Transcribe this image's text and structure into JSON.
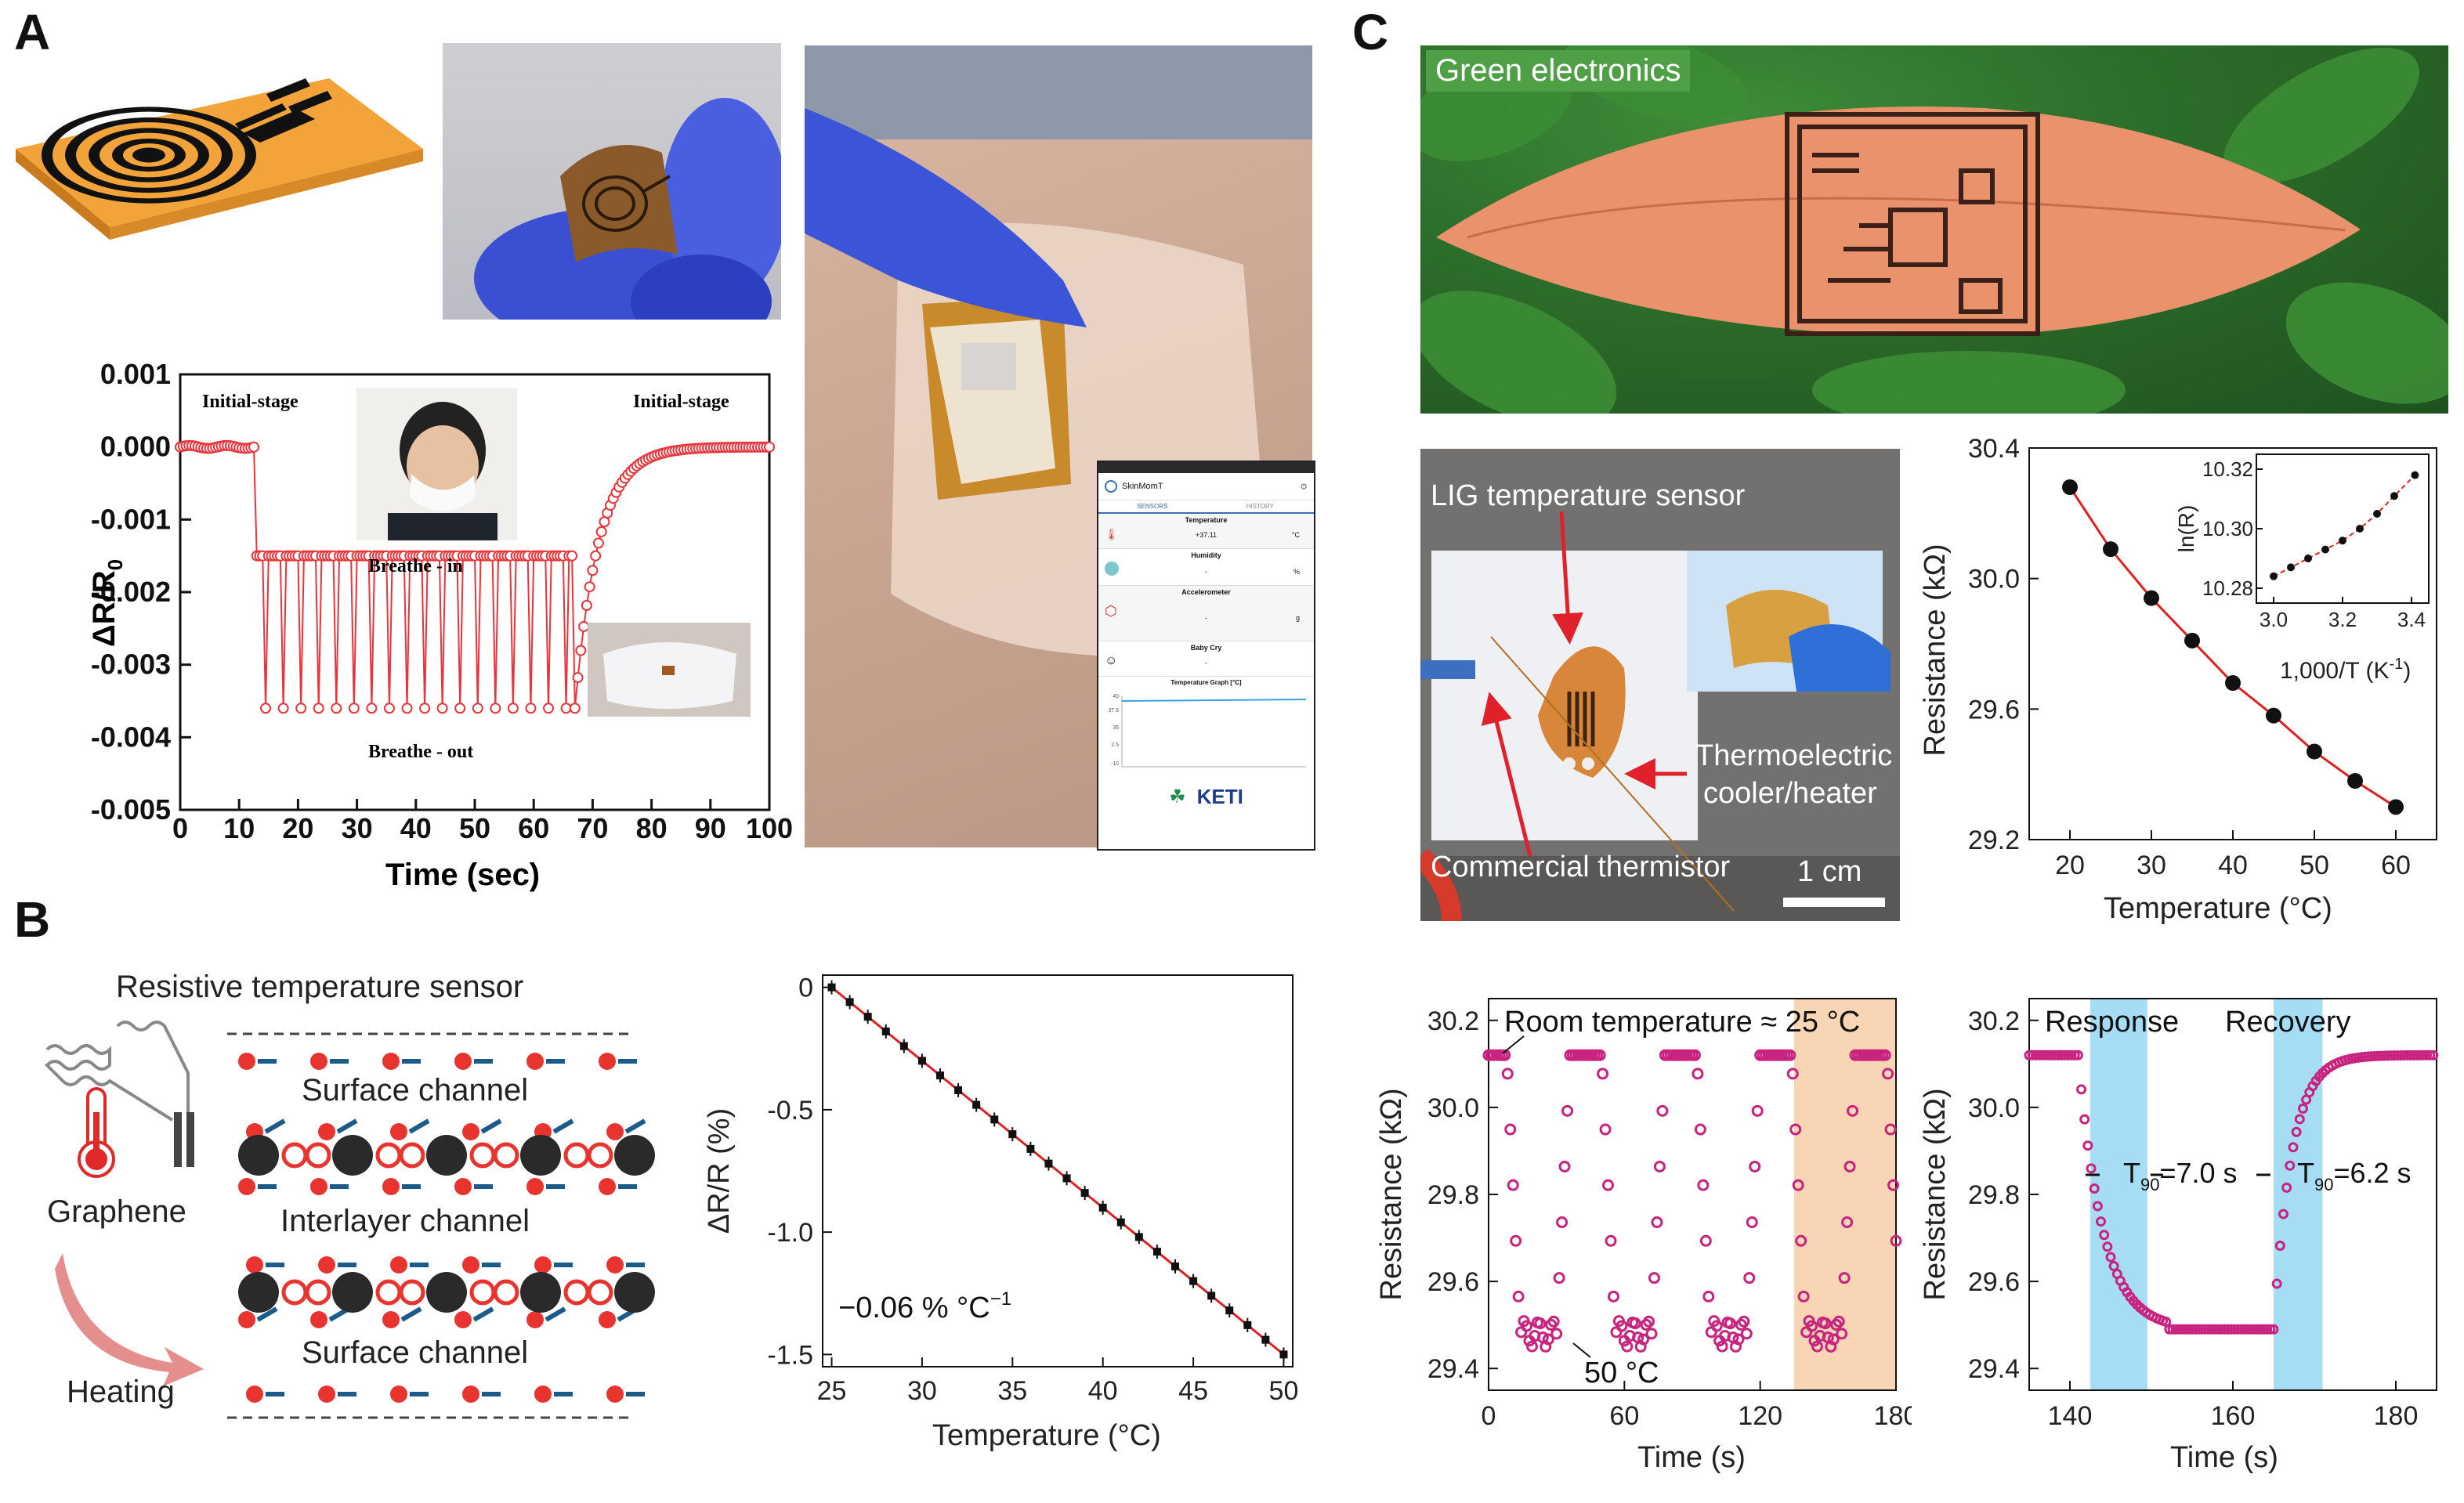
{
  "panels": {
    "a": {
      "letter": "A"
    },
    "b": {
      "letter": "B"
    },
    "c": {
      "letter": "C"
    }
  },
  "colors": {
    "red_series": "#e8343a",
    "magenta_series": "#c8237f",
    "fit_line": "#e02020",
    "shade_blue": "#a6dcf4",
    "shade_orange": "#f8d5b4"
  },
  "panel_a": {
    "chart_data": {
      "type": "line",
      "title": "",
      "xlabel": "Time (sec)",
      "ylabel": "ΔR/R0",
      "xlim": [
        0,
        100
      ],
      "ylim": [
        -0.005,
        0.001
      ],
      "xticks": [
        "0",
        "10",
        "20",
        "30",
        "40",
        "50",
        "60",
        "70",
        "80",
        "90",
        "100"
      ],
      "yticks": [
        "0.001",
        "0.000",
        "-0.001",
        "-0.002",
        "-0.003",
        "-0.004",
        "-0.005"
      ],
      "annotations": [
        "Initial-stage",
        "Initial-stage",
        "Breathe - in",
        "Breathe - out"
      ],
      "series": [
        {
          "name": "ΔR/R0",
          "baseline": 0.0,
          "breathe_in": -0.0015,
          "breathe_out": -0.0036,
          "oscillation_start": 13,
          "oscillation_end": 67,
          "breath_period": 3.0
        }
      ]
    }
  },
  "app_screen": {
    "app_name": "SkinMomT",
    "tabs": [
      "SENSORS",
      "HISTORY"
    ],
    "rows": [
      {
        "title": "Temperature",
        "value": "+37.11",
        "unit": "°C"
      },
      {
        "title": "Humidity",
        "value": "-",
        "unit": "%"
      },
      {
        "title": "Accelerometer",
        "value": "-",
        "unit": "g"
      },
      {
        "title": "Baby Cry",
        "value": "-",
        "unit": ""
      }
    ],
    "graph_title": "Temperature Graph [°C]",
    "graph_ticks": [
      "40",
      "37.5",
      "35",
      "2.5",
      "-10"
    ],
    "logo": "KETI"
  },
  "panel_b": {
    "schematic": {
      "title": "Resistive temperature sensor",
      "labels": [
        "Graphene",
        "Heating",
        "Surface channel",
        "Interlayer channel",
        "Surface channel"
      ]
    },
    "chart_data": {
      "type": "scatter",
      "xlabel": "Temperature (°C)",
      "ylabel": "ΔR/R (%)",
      "xlim": [
        25,
        50
      ],
      "ylim": [
        -1.5,
        0
      ],
      "xticks": [
        "25",
        "30",
        "35",
        "40",
        "45",
        "50"
      ],
      "yticks": [
        "0",
        "-0.5",
        "-1.0",
        "-1.5"
      ],
      "annotation": "−0.06 % °C",
      "annotation_sup": "−1",
      "x": [
        25,
        26,
        27,
        28,
        29,
        30,
        31,
        32,
        33,
        34,
        35,
        36,
        37,
        38,
        39,
        40,
        41,
        42,
        43,
        44,
        45,
        46,
        47,
        48,
        49,
        50
      ],
      "y": [
        0,
        -0.06,
        -0.12,
        -0.18,
        -0.24,
        -0.3,
        -0.36,
        -0.42,
        -0.48,
        -0.54,
        -0.6,
        -0.66,
        -0.72,
        -0.78,
        -0.84,
        -0.9,
        -0.96,
        -1.02,
        -1.08,
        -1.14,
        -1.2,
        -1.26,
        -1.32,
        -1.38,
        -1.44,
        -1.5
      ],
      "fit": {
        "slope": -0.06,
        "intercept": 1.5
      }
    }
  },
  "panel_c": {
    "leaf_label": "Green electronics",
    "photo_labels": {
      "sensor": "LIG temperature sensor",
      "cooler_1": "Thermoelectric",
      "cooler_2": "cooler/heater",
      "thermistor": "Commercial thermistor",
      "scale": "1 cm"
    },
    "resistance_chart": {
      "type": "scatter",
      "xlabel": "Temperature (°C)",
      "ylabel": "Resistance (kΩ)",
      "xlim": [
        15,
        65
      ],
      "ylim": [
        29.2,
        30.4
      ],
      "xticks": [
        "20",
        "30",
        "40",
        "50",
        "60"
      ],
      "yticks": [
        "30.4",
        "30.0",
        "29.6",
        "29.2"
      ],
      "x": [
        20,
        25,
        30,
        35,
        40,
        45,
        50,
        55,
        60
      ],
      "y": [
        30.28,
        30.09,
        29.94,
        29.81,
        29.68,
        29.58,
        29.47,
        29.38,
        29.3
      ]
    },
    "inset_chart": {
      "type": "scatter",
      "xlabel": "1,000/T (K",
      "xlabel_sup": "-1",
      "xlabel_end": ")",
      "ylabel": "ln(R)",
      "xlim": [
        2.95,
        3.45
      ],
      "ylim": [
        10.275,
        10.325
      ],
      "xticks": [
        "3.0",
        "3.2",
        "3.4"
      ],
      "yticks": [
        "10.32",
        "10.30",
        "10.28"
      ],
      "x": [
        3.0,
        3.05,
        3.1,
        3.15,
        3.2,
        3.25,
        3.3,
        3.35,
        3.41
      ],
      "y": [
        10.284,
        10.287,
        10.29,
        10.293,
        10.296,
        10.3,
        10.305,
        10.311,
        10.318
      ]
    },
    "cycle_chart": {
      "type": "line",
      "xlabel": "Time (s)",
      "ylabel": "Resistance (kΩ)",
      "xlim": [
        0,
        180
      ],
      "ylim": [
        29.35,
        30.25
      ],
      "xticks": [
        "0",
        "60",
        "120",
        "180"
      ],
      "yticks": [
        "30.2",
        "30.0",
        "29.8",
        "29.6",
        "29.4"
      ],
      "annotations": [
        "Room temperature ≈ 25 °C",
        "50 °C"
      ],
      "highlight_range": [
        135,
        180
      ],
      "high": 30.12,
      "low": 29.48
    },
    "response_chart": {
      "type": "line",
      "xlabel": "Time (s)",
      "ylabel": "Resistance (kΩ)",
      "xlim": [
        135,
        185
      ],
      "ylim": [
        29.35,
        30.25
      ],
      "xticks": [
        "140",
        "160",
        "180"
      ],
      "yticks": [
        "30.2",
        "30.0",
        "29.8",
        "29.6",
        "29.4"
      ],
      "annotations": [
        "Response",
        "Recovery"
      ],
      "t90_labels": [
        {
          "sub": "90",
          "pre": "T",
          "post": "=7.0 s"
        },
        {
          "sub": "90",
          "pre": "T",
          "post": "=6.2 s"
        }
      ],
      "bands": [
        [
          142.5,
          149.5
        ],
        [
          165,
          171
        ]
      ],
      "high": 30.12,
      "low": 29.49
    }
  }
}
